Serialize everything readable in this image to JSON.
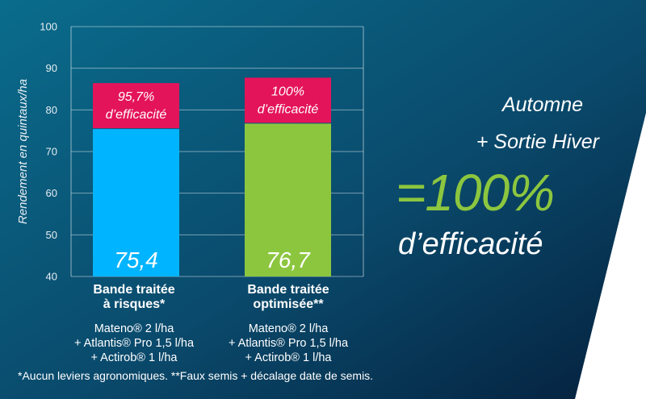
{
  "colors": {
    "bar_risk": "#00b4ff",
    "bar_opt": "#8cc63f",
    "badge": "#e4145a",
    "highlight": "#8cc63f"
  },
  "chart_data": {
    "type": "bar",
    "ylabel": "Rendement en quintaux/ha",
    "ylim": [
      40,
      100
    ],
    "yticks": [
      40,
      50,
      60,
      70,
      80,
      90,
      100
    ],
    "grid": true,
    "categories": [
      {
        "title": [
          "Bande traitée",
          "à risques*"
        ],
        "detail": [
          "Mateno® 2 l/ha",
          "+ Atlantis® Pro 1,5 l/ha",
          "+ Actirob® 1 l/ha"
        ]
      },
      {
        "title": [
          "Bande traitée",
          "optimisée**"
        ],
        "detail": [
          "Mateno® 2 l/ha",
          "+ Atlantis® Pro 1,5 l/ha",
          "+ Actirob® 1 l/ha"
        ]
      }
    ],
    "values": [
      75.4,
      76.7
    ],
    "value_labels": [
      "75,4",
      "76,7"
    ],
    "efficacy_labels": [
      [
        "95,7%",
        "d’efficacité"
      ],
      [
        "100%",
        "d’efficacité"
      ]
    ]
  },
  "side_panel": {
    "line1": "Automne",
    "line2": "+ Sortie Hiver",
    "big": "=100%",
    "line4": "d’efficacité"
  },
  "footnote": "*Aucun leviers agronomiques. **Faux semis + décalage date de semis."
}
